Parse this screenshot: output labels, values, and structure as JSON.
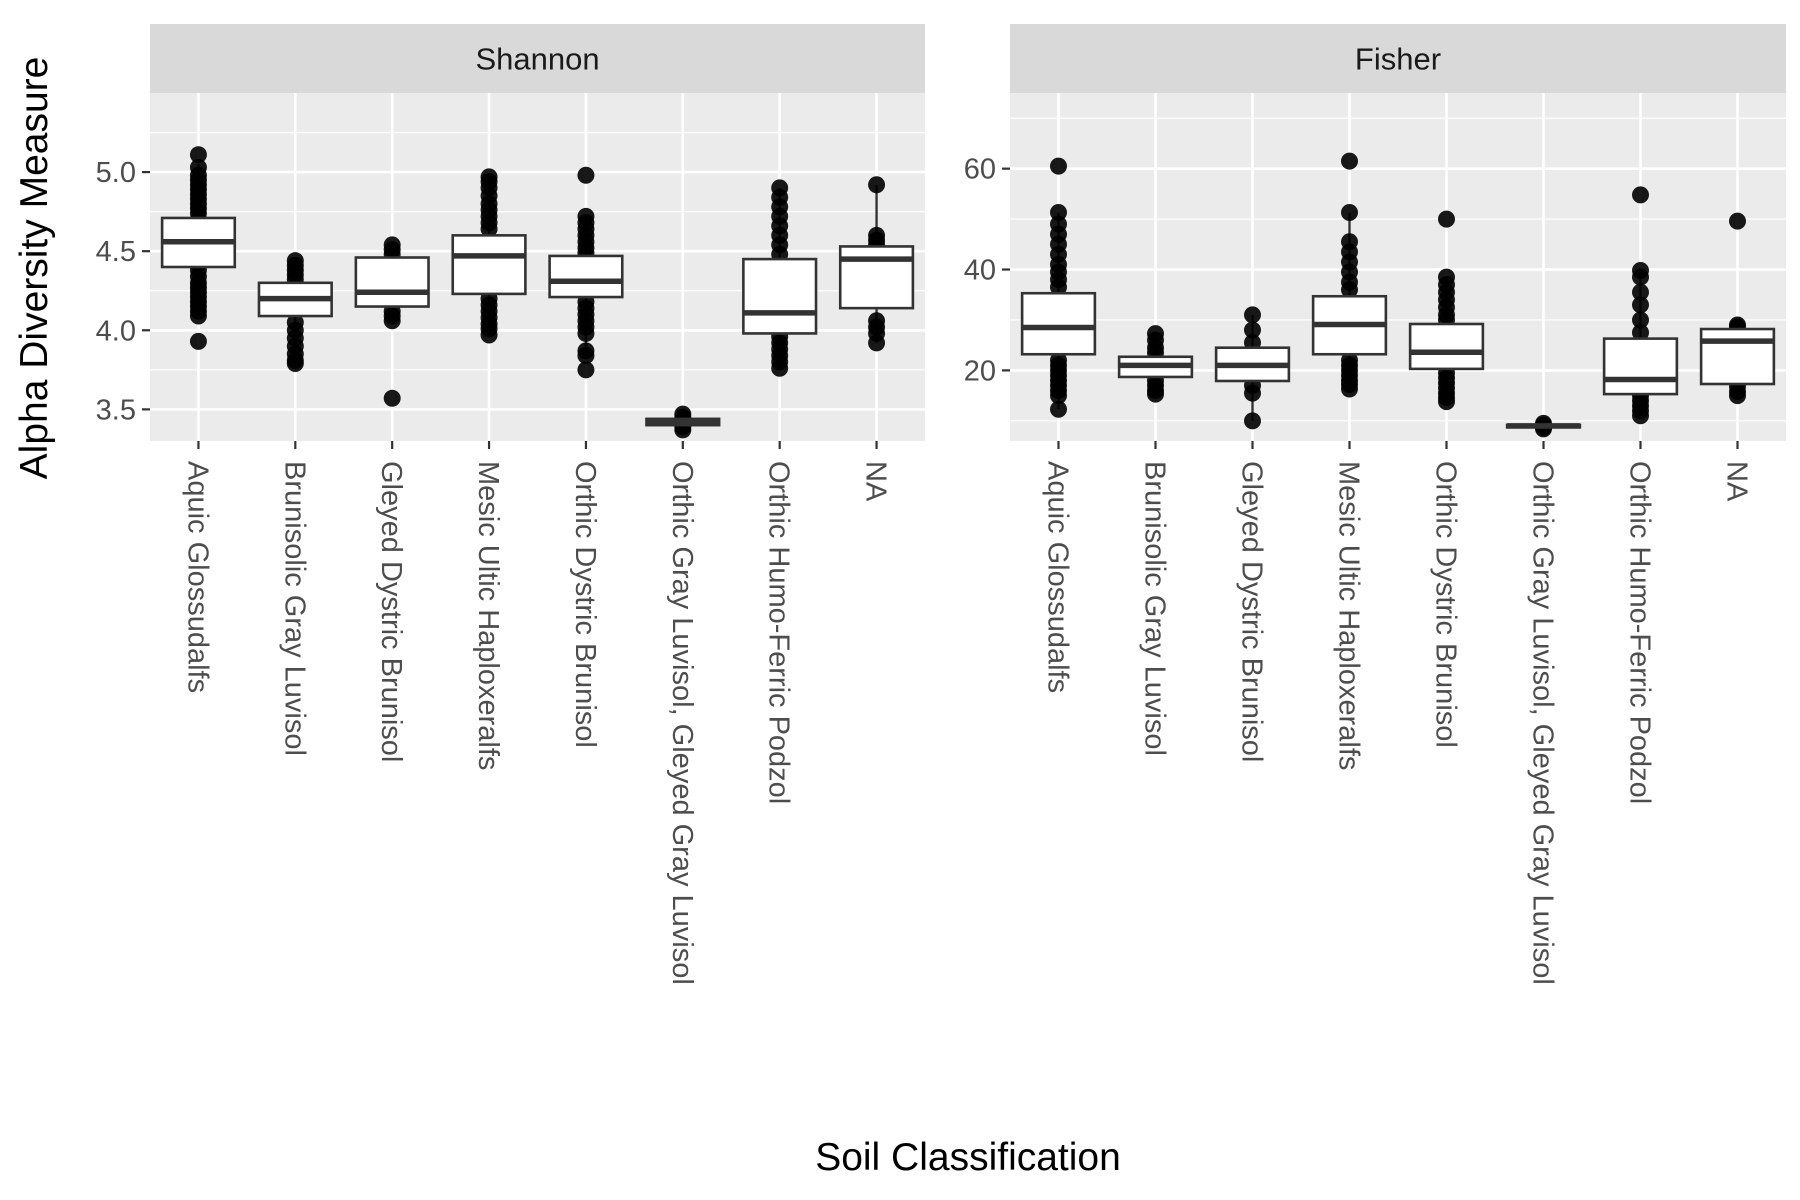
{
  "chart_data": {
    "type": "box",
    "xlabel": "Soil Classification",
    "ylabel": "Alpha Diversity Measure",
    "categories": [
      "Aquic Glossudalfs",
      "Brunisolic Gray Luvisol",
      "Gleyed Dystric Brunisol",
      "Mesic Ultic Haploxeralfs",
      "Orthic Dystric Brunisol",
      "Orthic Gray Luvisol, Gleyed Gray Luvisol",
      "Orthic Humo-Ferric Podzol",
      "NA"
    ],
    "grid": true,
    "panels": [
      {
        "title": "Shannon",
        "ylim": [
          3.3,
          5.5
        ],
        "yticks": [
          3.5,
          4.0,
          4.5,
          5.0
        ],
        "ytick_labels": [
          "3.5",
          "4.0",
          "4.5",
          "5.0"
        ],
        "boxes": [
          {
            "category": "Aquic Glossudalfs",
            "min": 4.1,
            "q1": 4.4,
            "median": 4.56,
            "q3": 4.71,
            "max": 5.05,
            "points": [
              5.11,
              5.03,
              4.98,
              4.95,
              4.92,
              4.89,
              4.86,
              4.83,
              4.8,
              4.77,
              4.74,
              4.7,
              4.66,
              4.62,
              4.58,
              4.54,
              4.5,
              4.46,
              4.42,
              4.38,
              4.34,
              4.3,
              4.27,
              4.24,
              4.21,
              4.18,
              4.15,
              4.12,
              4.09,
              3.93
            ]
          },
          {
            "category": "Brunisolic Gray Luvisol",
            "min": 3.79,
            "q1": 4.09,
            "median": 4.2,
            "q3": 4.3,
            "max": 4.44,
            "points": [
              4.44,
              4.41,
              4.38,
              4.35,
              4.32,
              4.05,
              4.0,
              3.95,
              3.9,
              3.85,
              3.81,
              3.79
            ]
          },
          {
            "category": "Gleyed Dystric Brunisol",
            "min": 4.06,
            "q1": 4.15,
            "median": 4.24,
            "q3": 4.46,
            "max": 4.54,
            "points": [
              4.54,
              4.51,
              4.48,
              4.12,
              4.09,
              4.06,
              3.57
            ]
          },
          {
            "category": "Mesic Ultic Haploxeralfs",
            "min": 3.97,
            "q1": 4.23,
            "median": 4.47,
            "q3": 4.6,
            "max": 4.96,
            "points": [
              4.97,
              4.94,
              4.9,
              4.85,
              4.8,
              4.76,
              4.72,
              4.68,
              4.64,
              4.2,
              4.16,
              4.12,
              4.08,
              4.04,
              4.01,
              3.97
            ]
          },
          {
            "category": "Orthic Dystric Brunisol",
            "min": 3.85,
            "q1": 4.21,
            "median": 4.31,
            "q3": 4.47,
            "max": 4.72,
            "points": [
              4.98,
              4.72,
              4.68,
              4.64,
              4.6,
              4.56,
              4.52,
              4.49,
              4.18,
              4.14,
              4.1,
              4.06,
              4.02,
              3.98,
              3.87,
              3.84,
              3.75
            ]
          },
          {
            "category": "Orthic Gray Luvisol, Gleyed Gray Luvisol",
            "min": 3.38,
            "q1": 3.4,
            "median": 3.42,
            "q3": 3.44,
            "max": 3.47,
            "points": [
              3.47,
              3.45,
              3.43,
              3.41,
              3.39,
              3.37
            ]
          },
          {
            "category": "Orthic Humo-Ferric Podzol",
            "min": 3.76,
            "q1": 3.98,
            "median": 4.11,
            "q3": 4.45,
            "max": 4.9,
            "points": [
              4.9,
              4.84,
              4.78,
              4.72,
              4.66,
              4.6,
              4.54,
              4.48,
              3.96,
              3.92,
              3.88,
              3.84,
              3.8,
              3.76
            ]
          },
          {
            "category": "NA",
            "min": 3.92,
            "q1": 4.14,
            "median": 4.45,
            "q3": 4.53,
            "max": 4.92,
            "points": [
              4.92,
              4.6,
              4.57,
              4.54,
              4.06,
              4.02,
              3.98,
              3.92
            ]
          }
        ]
      },
      {
        "title": "Fisher",
        "ylim": [
          6,
          75
        ],
        "yticks": [
          20,
          40,
          60
        ],
        "ytick_labels": [
          "20",
          "40",
          "60"
        ],
        "boxes": [
          {
            "category": "Aquic Glossudalfs",
            "min": 12.3,
            "q1": 23.2,
            "median": 28.5,
            "q3": 35.3,
            "max": 51.3,
            "points": [
              60.5,
              51.3,
              49.0,
              47.0,
              45.0,
              43.0,
              41.0,
              39.5,
              38.0,
              36.5,
              22.0,
              21.0,
              20.0,
              19.0,
              18.0,
              17.0,
              16.0,
              15.0,
              12.3
            ]
          },
          {
            "category": "Brunisolic Gray Luvisol",
            "min": 15.3,
            "q1": 18.7,
            "median": 21.0,
            "q3": 22.7,
            "max": 27.3,
            "points": [
              27.3,
              26.0,
              24.5,
              23.5,
              18.0,
              17.0,
              16.0,
              15.3
            ]
          },
          {
            "category": "Gleyed Dystric Brunisol",
            "min": 10.0,
            "q1": 17.9,
            "median": 21.0,
            "q3": 24.5,
            "max": 31.0,
            "points": [
              31.0,
              28.0,
              25.5,
              17.0,
              15.5,
              10.0
            ]
          },
          {
            "category": "Mesic Ultic Haploxeralfs",
            "min": 16.3,
            "q1": 23.2,
            "median": 29.1,
            "q3": 34.7,
            "max": 51.3,
            "points": [
              61.5,
              51.3,
              45.5,
              43.5,
              41.5,
              39.5,
              37.5,
              36.0,
              22.0,
              21.0,
              20.0,
              19.0,
              18.0,
              17.2,
              16.3
            ]
          },
          {
            "category": "Orthic Dystric Brunisol",
            "min": 13.8,
            "q1": 20.3,
            "median": 23.6,
            "q3": 29.2,
            "max": 38.5,
            "points": [
              50.0,
              38.5,
              37.0,
              35.5,
              34.0,
              32.5,
              31.0,
              30.0,
              19.5,
              18.5,
              17.5,
              16.5,
              15.5,
              14.6,
              13.8
            ]
          },
          {
            "category": "Orthic Gray Luvisol, Gleyed Gray Luvisol",
            "min": 8.4,
            "q1": 8.7,
            "median": 9.0,
            "q3": 9.2,
            "max": 9.5,
            "points": [
              9.5,
              9.1,
              8.7,
              8.4
            ]
          },
          {
            "category": "Orthic Humo-Ferric Podzol",
            "min": 11.0,
            "q1": 15.3,
            "median": 18.2,
            "q3": 26.3,
            "max": 39.8,
            "points": [
              54.8,
              39.8,
              38.5,
              35.5,
              33.0,
              30.0,
              27.5,
              15.0,
              14.0,
              13.0,
              12.0,
              11.0
            ]
          },
          {
            "category": "NA",
            "min": 15.0,
            "q1": 17.3,
            "median": 25.8,
            "q3": 28.2,
            "max": 29.0,
            "points": [
              49.6,
              29.0,
              28.6,
              16.8,
              15.8,
              15.0
            ]
          }
        ]
      }
    ]
  }
}
